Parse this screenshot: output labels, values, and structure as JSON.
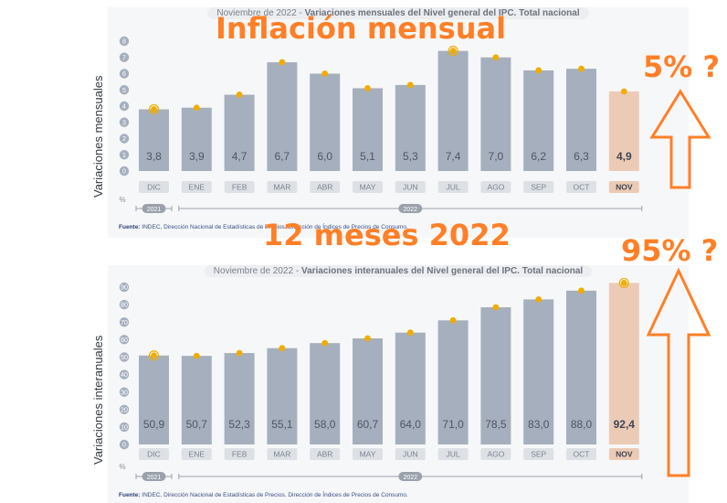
{
  "overlays": {
    "title_top": "Inflación mensual",
    "title_bottom": "12 meses 2022",
    "question_top": "5% ?",
    "question_bottom": "95% ?"
  },
  "source_label": "Fuente:",
  "source_text": "INDEC, Dirección Nacional de Estadísticas de Precios. Dirección de Índices de Precios de Consumo.",
  "colors": {
    "bar": "#a6afbd",
    "bar_highlight": "#eccbb6",
    "dot": "#f0ad00",
    "tick_circle": "#a6afbd",
    "label_box": "#dde1e6",
    "overlay": "#ff7f27"
  },
  "chart_data": [
    {
      "type": "bar",
      "title_prefix": "Noviembre de 2022 - ",
      "title_main": "Variaciones mensuales del Nivel general del IPC. Total nacional",
      "ylabel": "Variaciones mensuales",
      "unit_label": "%",
      "categories": [
        "DIC",
        "ENE",
        "FEB",
        "MAR",
        "ABR",
        "MAY",
        "JUN",
        "JUL",
        "AGO",
        "SEP",
        "OCT",
        "NOV"
      ],
      "values": [
        3.8,
        3.9,
        4.7,
        6.7,
        6.0,
        5.1,
        5.3,
        7.4,
        7.0,
        6.2,
        6.3,
        4.9
      ],
      "value_labels": [
        "3,8",
        "3,9",
        "4,7",
        "6,7",
        "6,0",
        "5,1",
        "5,3",
        "7,4",
        "7,0",
        "6,2",
        "6,3",
        "4,9"
      ],
      "yticks": [
        0,
        1,
        2,
        3,
        4,
        5,
        6,
        7,
        8
      ],
      "ylim": [
        0,
        8
      ],
      "years": [
        {
          "label": "2021",
          "from": 0,
          "to": 0
        },
        {
          "label": "2022",
          "from": 1,
          "to": 11
        }
      ],
      "highlight_index": 11
    },
    {
      "type": "bar",
      "title_prefix": "Noviembre de 2022 - ",
      "title_main": "Variaciones interanuales del Nivel general del IPC. Total nacional",
      "ylabel": "Variaciones interanuales",
      "unit_label": "%",
      "categories": [
        "DIC",
        "ENE",
        "FEB",
        "MAR",
        "ABR",
        "MAY",
        "JUN",
        "JUL",
        "AGO",
        "SEP",
        "OCT",
        "NOV"
      ],
      "values": [
        50.9,
        50.7,
        52.3,
        55.1,
        58.0,
        60.7,
        64.0,
        71.0,
        78.5,
        83.0,
        88.0,
        92.4
      ],
      "value_labels": [
        "50,9",
        "50,7",
        "52,3",
        "55,1",
        "58,0",
        "60,7",
        "64,0",
        "71,0",
        "78,5",
        "83,0",
        "88,0",
        "92,4"
      ],
      "yticks": [
        0,
        10,
        20,
        30,
        40,
        50,
        60,
        70,
        80,
        90
      ],
      "ylim": [
        0,
        90
      ],
      "years": [
        {
          "label": "2021",
          "from": 0,
          "to": 0
        },
        {
          "label": "2022",
          "from": 1,
          "to": 11
        }
      ],
      "highlight_index": 11
    }
  ]
}
